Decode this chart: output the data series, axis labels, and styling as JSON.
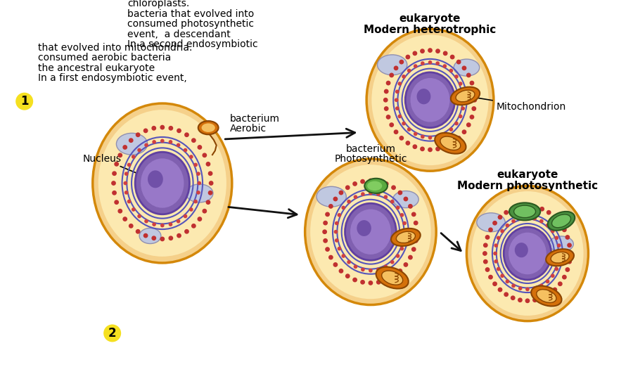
{
  "cell_outer_color": "#f5d08a",
  "cell_outer_edge": "#d4880a",
  "cell_inner_color": "#fce9b0",
  "er_color": "#5555bb",
  "mito_color": "#d4700a",
  "mito_inner": "#f5c060",
  "mito_edge": "#8B4500",
  "chloro_color": "#4a9040",
  "chloro_inner": "#70c060",
  "chloro_edge": "#2a5a20",
  "vacuole_color": "#c0c8e0",
  "vacuole_edge": "#9090b0",
  "nuc_outer_color": "#8060b0",
  "nuc_outer_edge": "#6040a0",
  "nuc_inner_color": "#9878c8",
  "nuc_spot_color": "#7050a8",
  "ribo_color1": "#c03030",
  "ribo_color2": "#d04040",
  "aerobic_color": "#d4700a",
  "aerobic_inner": "#f5c060",
  "aerobic_edge": "#8B4500",
  "photosyn_color": "#5aaa40",
  "photosyn_inner": "#80cc60",
  "photosyn_edge": "#2a5a20",
  "badge_color": "#f5e020",
  "arrow_color": "#111111",
  "text_color": "#111111",
  "label1_lines": [
    "In a first endosymbiotic event,",
    "the ancestral eukaryote",
    "consumed aerobic bacteria",
    "that evolved into mitochondria."
  ],
  "label2_lines": [
    "In a second endosymbiotic",
    "event,  a descendant",
    "consumed photosynthetic",
    "bacteria that evolved into",
    "chloroplasts."
  ],
  "photosyn_label": [
    "Photosynthetic",
    "bacterium"
  ],
  "aerobic_label": [
    "Aerobic",
    "bacterium"
  ],
  "nucleus_label": "Nucleus",
  "mito_label": "Mitochondrion",
  "modern_photo_label": [
    "Modern photosynthetic",
    "eukaryote"
  ],
  "modern_hetero_label": [
    "Modern heterotrophic",
    "eukaryote"
  ]
}
